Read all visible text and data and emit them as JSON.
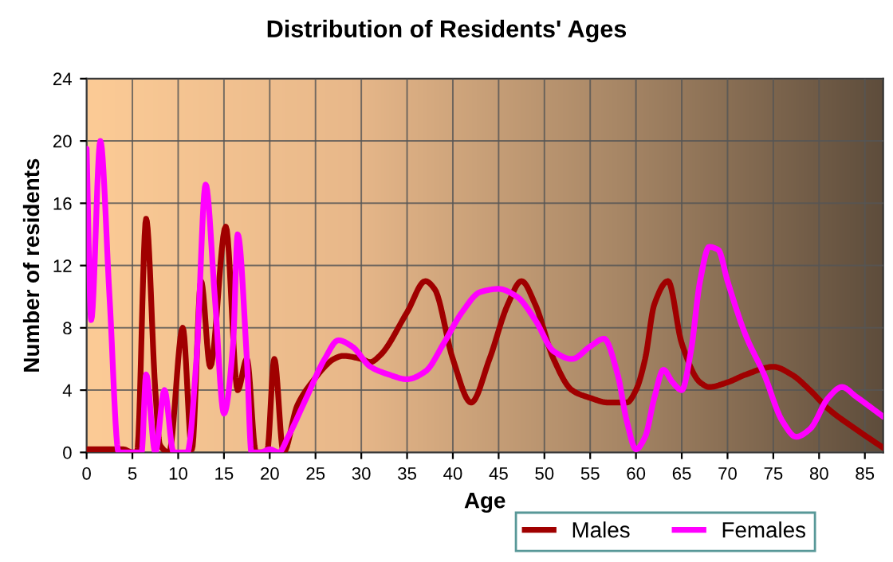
{
  "chart_data": {
    "type": "line",
    "title": "Distribution of Residents' Ages",
    "xlabel": "Age",
    "ylabel": "Number of residents",
    "xlim": [
      0,
      87
    ],
    "xticks": [
      0,
      5,
      10,
      15,
      20,
      25,
      30,
      35,
      40,
      45,
      50,
      55,
      60,
      65,
      70,
      75,
      80,
      85
    ],
    "ylim": [
      0,
      24
    ],
    "yticks": [
      0,
      4,
      8,
      12,
      16,
      20,
      24
    ],
    "grid": true,
    "legend": "bottom",
    "series": [
      {
        "name": "Males",
        "color": "#a00000",
        "x": [
          0,
          1,
          2,
          3,
          4,
          5,
          5.5,
          6.5,
          7.5,
          8,
          9,
          10.5,
          11.5,
          12.5,
          13.5,
          15.2,
          16.5,
          17.5,
          18.5,
          19.7,
          20.5,
          21.5,
          23,
          25,
          26,
          27,
          28,
          30,
          31,
          32,
          35,
          37,
          38,
          40,
          42,
          44,
          46,
          47.5,
          49,
          51,
          53,
          55,
          57,
          59,
          60,
          61,
          62,
          63.5,
          65,
          67,
          68,
          70,
          72,
          75,
          77,
          79,
          81,
          84,
          87
        ],
        "values": [
          0.2,
          0.2,
          0.2,
          0.2,
          0.2,
          0,
          0,
          15,
          4,
          0.5,
          0,
          8,
          0.2,
          11,
          5.5,
          14.5,
          4,
          6,
          0,
          0,
          6,
          0,
          3,
          4.8,
          5.5,
          6,
          6.2,
          6,
          5.8,
          6.2,
          9,
          11,
          10.5,
          6,
          3.2,
          6,
          9.5,
          11,
          9.5,
          6,
          4,
          3.5,
          3.2,
          3.2,
          4,
          6,
          9.5,
          11,
          7,
          4.5,
          4.2,
          4.5,
          5,
          5.5,
          5,
          4,
          2.8,
          1.5,
          0.3
        ]
      },
      {
        "name": "Females",
        "color": "#ff00ff",
        "x": [
          0,
          0.5,
          1.5,
          2.5,
          3.5,
          4,
          5,
          6,
          6.5,
          7.5,
          8.5,
          9.5,
          10,
          11,
          12,
          13,
          14,
          15,
          16,
          16.5,
          17.5,
          18,
          19,
          20,
          21,
          22,
          24,
          26,
          27.5,
          29,
          31,
          33,
          35,
          37,
          39,
          41,
          43,
          45,
          47,
          49,
          51,
          53,
          55,
          56.5,
          58,
          59,
          60,
          61,
          62,
          63,
          64,
          65,
          66,
          67,
          68,
          69,
          70,
          72,
          74,
          76,
          77.5,
          79,
          81,
          82.5,
          84,
          87
        ],
        "values": [
          19.5,
          8.5,
          20,
          10,
          0,
          0,
          0,
          0,
          5,
          0,
          4,
          0,
          0,
          0,
          6,
          17.2,
          10,
          2.5,
          7,
          14,
          6,
          0,
          0,
          0.2,
          0,
          1,
          3.5,
          6,
          7.2,
          6.8,
          5.5,
          5,
          4.7,
          5.2,
          7,
          9,
          10.3,
          10.5,
          10,
          8.5,
          6.5,
          6,
          6.8,
          7.3,
          5,
          2,
          0.2,
          1,
          3.5,
          5.3,
          4.5,
          4,
          6.5,
          11,
          13.2,
          13,
          11,
          7.5,
          5,
          2,
          1,
          1.5,
          3.5,
          4.2,
          3.6,
          2.3
        ]
      }
    ]
  }
}
